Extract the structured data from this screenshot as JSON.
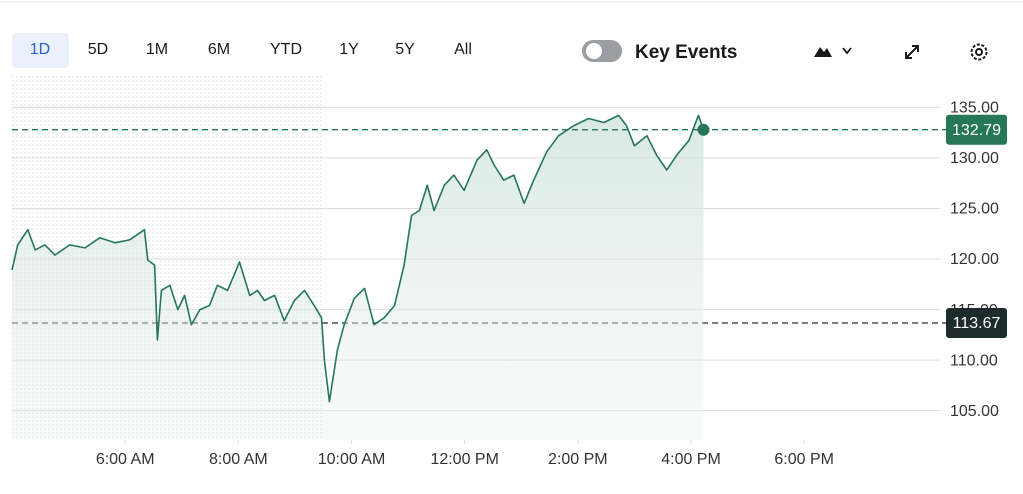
{
  "toolbar": {
    "ranges": [
      "1D",
      "5D",
      "1M",
      "6M",
      "YTD",
      "1Y",
      "5Y",
      "All"
    ],
    "toggle_label": "Key Events"
  },
  "chart_data": {
    "type": "line",
    "color": "#267757",
    "x": [
      4.0,
      4.1,
      4.28,
      4.41,
      4.58,
      4.76,
      5.02,
      5.29,
      5.55,
      5.82,
      6.08,
      6.34,
      6.4,
      6.52,
      6.57,
      6.64,
      6.79,
      6.93,
      7.05,
      7.17,
      7.32,
      7.49,
      7.63,
      7.81,
      8.02,
      8.2,
      8.34,
      8.46,
      8.64,
      8.81,
      8.99,
      9.17,
      9.34,
      9.47,
      9.52,
      9.61,
      9.75,
      9.87,
      10.05,
      10.23,
      10.4,
      10.58,
      10.76,
      10.93,
      11.06,
      11.2,
      11.34,
      11.46,
      11.64,
      11.81,
      11.99,
      12.22,
      12.39,
      12.52,
      12.69,
      12.87,
      13.05,
      13.22,
      13.45,
      13.66,
      13.93,
      14.19,
      14.46,
      14.72,
      14.86,
      15.0,
      15.22,
      15.39,
      15.57,
      15.75,
      15.96,
      16.13,
      16.22
    ],
    "values": [
      118.9,
      121.4,
      122.9,
      120.9,
      121.4,
      120.4,
      121.4,
      121.1,
      122.1,
      121.6,
      121.9,
      122.9,
      119.9,
      119.4,
      112.0,
      116.9,
      117.4,
      115.0,
      116.4,
      113.5,
      115.0,
      115.4,
      117.4,
      116.9,
      119.7,
      116.4,
      116.9,
      115.9,
      116.4,
      113.9,
      115.9,
      116.9,
      115.4,
      114.2,
      110.0,
      105.9,
      111.0,
      113.5,
      116.1,
      117.1,
      113.5,
      114.2,
      115.4,
      119.4,
      124.3,
      124.8,
      127.3,
      124.8,
      127.3,
      128.3,
      126.8,
      129.8,
      130.8,
      129.3,
      127.8,
      128.3,
      125.5,
      127.8,
      130.6,
      132.2,
      133.2,
      133.9,
      133.5,
      134.2,
      133.2,
      131.2,
      132.2,
      130.3,
      128.8,
      130.3,
      131.7,
      134.2,
      132.79
    ],
    "current_price": 132.79,
    "previous_close": 113.67,
    "xlim": [
      4.0,
      20.4
    ],
    "xticks": [
      {
        "value": 6,
        "label": "6:00 AM"
      },
      {
        "value": 8,
        "label": "8:00 AM"
      },
      {
        "value": 10,
        "label": "10:00 AM"
      },
      {
        "value": 12,
        "label": "12:00 PM"
      },
      {
        "value": 14,
        "label": "2:00 PM"
      },
      {
        "value": 16,
        "label": "4:00 PM"
      },
      {
        "value": 18,
        "label": "6:00 PM"
      }
    ],
    "ylim": [
      102.1,
      138.2
    ],
    "yticks": [
      {
        "value": 105,
        "label": "105.00"
      },
      {
        "value": 110,
        "label": "110.00"
      },
      {
        "value": 115,
        "label": "115.00"
      },
      {
        "value": 120,
        "label": "120.00"
      },
      {
        "value": 125,
        "label": "125.00"
      },
      {
        "value": 130,
        "label": "130.00"
      },
      {
        "value": 135,
        "label": "135.00"
      }
    ],
    "grid": true
  }
}
